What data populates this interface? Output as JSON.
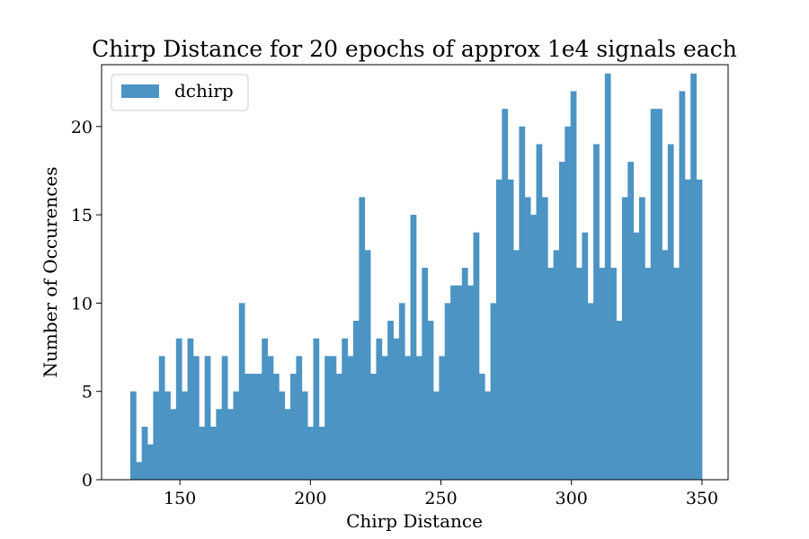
{
  "chart_data": {
    "type": "bar",
    "title": "Chirp Distance for 20 epochs of approx 1e4 signals each",
    "xlabel": "Chirp Distance",
    "ylabel": "Number of Occurences",
    "xlim": [
      120,
      360
    ],
    "ylim": [
      0,
      23.5
    ],
    "xticks": [
      150,
      200,
      250,
      300,
      350
    ],
    "yticks": [
      0,
      5,
      10,
      15,
      20
    ],
    "bin_start": 131,
    "bin_width": 2.19,
    "legend_position": "top-left",
    "color": "#4c94c4",
    "series": [
      {
        "name": "dchirp",
        "values": [
          5,
          1,
          3,
          2,
          5,
          7,
          5,
          4,
          8,
          5,
          8,
          7,
          3,
          7,
          3,
          4,
          7,
          4,
          5,
          10,
          6,
          6,
          6,
          8,
          7,
          6,
          5,
          4,
          6,
          7,
          5,
          3,
          8,
          3,
          7,
          7,
          6,
          8,
          7,
          9,
          16,
          13,
          6,
          8,
          7,
          9,
          8,
          10,
          7,
          15,
          7,
          12,
          9,
          5,
          7,
          10,
          11,
          11,
          12,
          11,
          14,
          6,
          5,
          10,
          17,
          21,
          17,
          13,
          20,
          16,
          15,
          19,
          16,
          12,
          13,
          18,
          20,
          22,
          12,
          14,
          10,
          19,
          12,
          23,
          12,
          9,
          16,
          18,
          14,
          16,
          12,
          21,
          21,
          13,
          19,
          12,
          22,
          17,
          23,
          17
        ]
      }
    ]
  }
}
